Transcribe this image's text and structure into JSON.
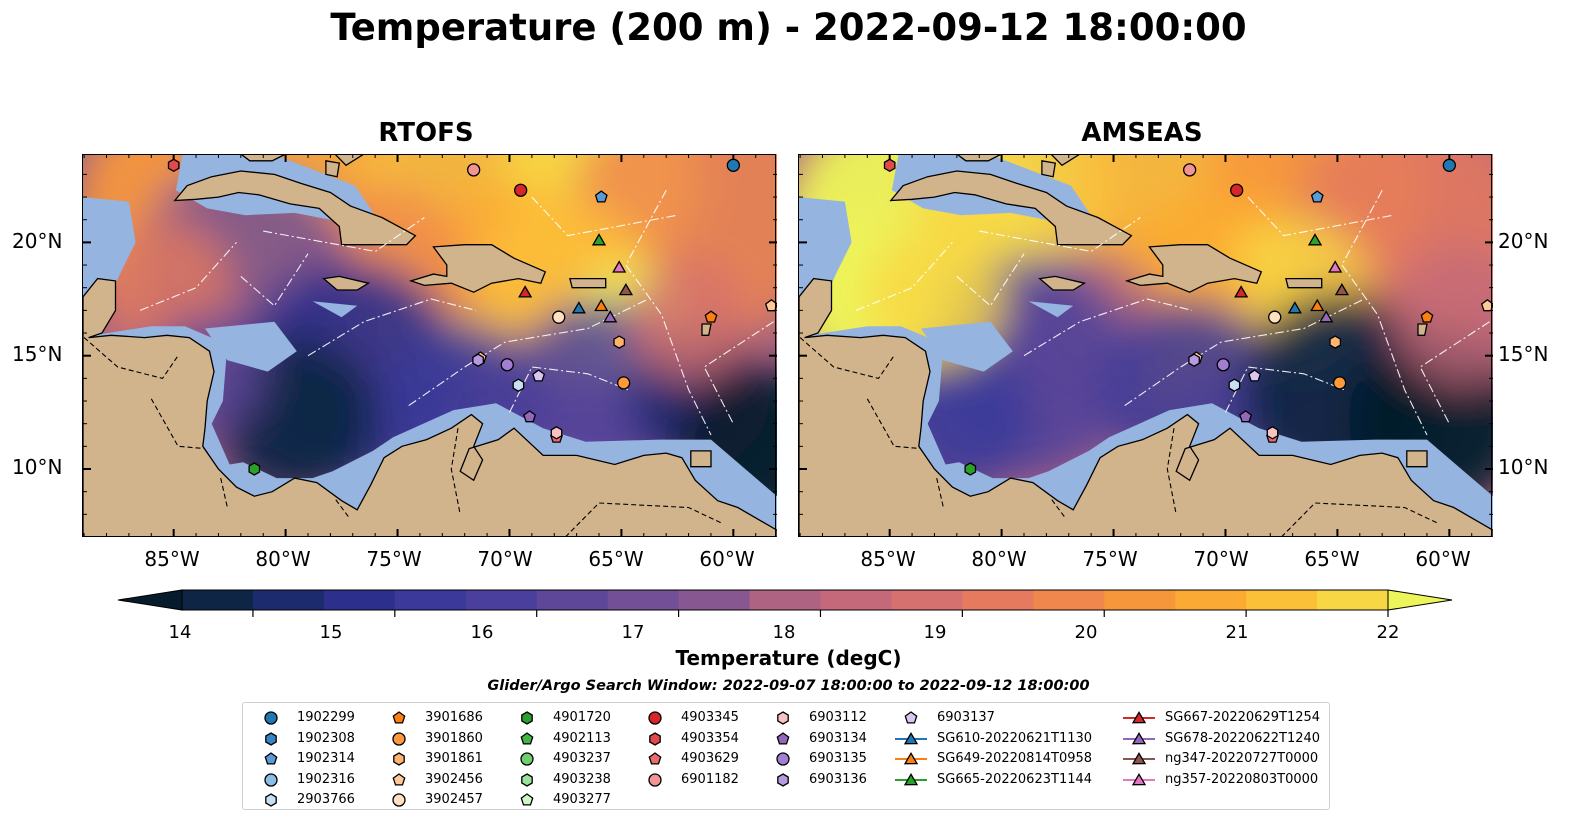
{
  "title": "Temperature (200 m) - 2022-09-12 18:00:00",
  "panels": [
    {
      "title": "RTOFS",
      "colorway": "warm"
    },
    {
      "title": "AMSEAS",
      "colorway": "bright"
    }
  ],
  "lat_labels": [
    "20°N",
    "15°N",
    "10°N"
  ],
  "lon_labels": [
    "85°W",
    "80°W",
    "75°W",
    "70°W",
    "65°W",
    "60°W"
  ],
  "colorbar": {
    "label": "Temperature (degC)",
    "min": 13.5,
    "max": 22,
    "step": 0.5,
    "tick_labels": [
      "14",
      "15",
      "16",
      "17",
      "18",
      "19",
      "20",
      "21",
      "22"
    ],
    "colors": [
      "#061b2b",
      "#0f2545",
      "#1c2a6e",
      "#2c308c",
      "#3b3999",
      "#4a3f9c",
      "#5e4699",
      "#724f97",
      "#875791",
      "#9b5d8a",
      "#ae6382",
      "#c3697a",
      "#d5716e",
      "#e57a5e",
      "#f0874c",
      "#f7973c",
      "#fbaa33",
      "#fcbf38",
      "#f8d744",
      "#eef55a"
    ]
  },
  "search_window": "Glider/Argo Search Window: 2022-09-07 18:00:00 to 2022-09-12 18:00:00",
  "legend": [
    [
      {
        "label": "1902299",
        "marker": "circle",
        "color": "#1f77b4"
      },
      {
        "label": "1902308",
        "marker": "hexagon",
        "color": "#3a84c4"
      },
      {
        "label": "1902314",
        "marker": "pentagon",
        "color": "#5a9bd6"
      },
      {
        "label": "1902316",
        "marker": "circle",
        "color": "#8bbfe6"
      },
      {
        "label": "2903766",
        "marker": "hexagon",
        "color": "#c6dff3"
      }
    ],
    [
      {
        "label": "3901686",
        "marker": "pentagon",
        "color": "#ff7f0e"
      },
      {
        "label": "3901860",
        "marker": "circle",
        "color": "#ff9a3c"
      },
      {
        "label": "3901861",
        "marker": "hexagon",
        "color": "#ffb36e"
      },
      {
        "label": "3902456",
        "marker": "pentagon",
        "color": "#ffc896"
      },
      {
        "label": "3902457",
        "marker": "circle",
        "color": "#ffe0c0"
      }
    ],
    [
      {
        "label": "4901720",
        "marker": "hexagon",
        "color": "#2ca02c"
      },
      {
        "label": "4902113",
        "marker": "pentagon",
        "color": "#45b545"
      },
      {
        "label": "4903237",
        "marker": "circle",
        "color": "#6fcf6f"
      },
      {
        "label": "4903238",
        "marker": "hexagon",
        "color": "#9be39b"
      },
      {
        "label": "4903277",
        "marker": "pentagon",
        "color": "#cff5c9"
      }
    ],
    [
      {
        "label": "4903345",
        "marker": "circle",
        "color": "#d62728"
      },
      {
        "label": "4903354",
        "marker": "hexagon",
        "color": "#e04a4a"
      },
      {
        "label": "4903629",
        "marker": "pentagon",
        "color": "#ea6b6b"
      },
      {
        "label": "6901182",
        "marker": "circle",
        "color": "#f29494"
      }
    ],
    [
      {
        "label": "6903112",
        "marker": "hexagon",
        "color": "#f9c3c3"
      },
      {
        "label": "6903134",
        "marker": "pentagon",
        "color": "#9467bd"
      },
      {
        "label": "6903135",
        "marker": "circle",
        "color": "#a27fd0"
      },
      {
        "label": "6903136",
        "marker": "hexagon",
        "color": "#b79be0"
      }
    ],
    [
      {
        "label": "6903137",
        "marker": "pentagon",
        "color": "#d9c6f3"
      },
      {
        "label": "SG610-20220621T1130",
        "marker": "triangle",
        "color": "#1f77b4",
        "line": true
      },
      {
        "label": "SG649-20220814T0958",
        "marker": "triangle",
        "color": "#ff7f0e",
        "line": true
      },
      {
        "label": "SG665-20220623T1144",
        "marker": "triangle",
        "color": "#2ca02c",
        "line": true
      }
    ],
    [
      {
        "label": "SG667-20220629T1254",
        "marker": "triangle",
        "color": "#d62728",
        "line": true
      },
      {
        "label": "SG678-20220622T1240",
        "marker": "triangle",
        "color": "#9467bd",
        "line": true
      },
      {
        "label": "ng347-20220727T0000",
        "marker": "triangle",
        "color": "#8c564b",
        "line": true
      },
      {
        "label": "ng357-20220803T0000",
        "marker": "triangle",
        "color": "#e377c2",
        "line": true
      }
    ]
  ],
  "map_markers": [
    {
      "id": "1902299",
      "lon": -60.0,
      "lat": 23.4,
      "marker": "circle",
      "color": "#1f77b4"
    },
    {
      "id": "1902314",
      "lon": -65.9,
      "lat": 22.0,
      "marker": "pentagon",
      "color": "#5a9bd6"
    },
    {
      "id": "2903766",
      "lon": -69.6,
      "lat": 13.7,
      "marker": "hexagon",
      "color": "#c6dff3"
    },
    {
      "id": "3901686",
      "lon": -61.0,
      "lat": 16.7,
      "marker": "pentagon",
      "color": "#ff7f0e"
    },
    {
      "id": "3901860",
      "lon": -64.9,
      "lat": 13.8,
      "marker": "circle",
      "color": "#ff9a3c"
    },
    {
      "id": "3901861",
      "lon": -65.1,
      "lat": 15.6,
      "marker": "hexagon",
      "color": "#ffb36e"
    },
    {
      "id": "3902456",
      "lon": -71.3,
      "lat": 14.9,
      "marker": "pentagon",
      "color": "#ffc896"
    },
    {
      "id": "3902457",
      "lon": -67.8,
      "lat": 16.7,
      "marker": "circle",
      "color": "#ffe0c0"
    },
    {
      "id": "4901720",
      "lon": -81.4,
      "lat": 10.0,
      "marker": "hexagon",
      "color": "#2ca02c"
    },
    {
      "id": "4903345",
      "lon": -69.5,
      "lat": 22.3,
      "marker": "circle",
      "color": "#d62728"
    },
    {
      "id": "4903354",
      "lon": -85.0,
      "lat": 23.4,
      "marker": "hexagon",
      "color": "#e04a4a"
    },
    {
      "id": "4903629",
      "lon": -67.9,
      "lat": 11.4,
      "marker": "pentagon",
      "color": "#ea6b6b"
    },
    {
      "id": "6901182",
      "lon": -71.6,
      "lat": 23.2,
      "marker": "circle",
      "color": "#f29494"
    },
    {
      "id": "6903112",
      "lon": -67.9,
      "lat": 11.6,
      "marker": "hexagon",
      "color": "#f9c3c3"
    },
    {
      "id": "6903134",
      "lon": -69.1,
      "lat": 12.3,
      "marker": "pentagon",
      "color": "#9467bd"
    },
    {
      "id": "6903135",
      "lon": -70.1,
      "lat": 14.6,
      "marker": "circle",
      "color": "#a27fd0"
    },
    {
      "id": "6903136",
      "lon": -71.4,
      "lat": 14.8,
      "marker": "hexagon",
      "color": "#b79be0"
    },
    {
      "id": "6903137",
      "lon": -68.7,
      "lat": 14.1,
      "marker": "pentagon",
      "color": "#d9c6f3"
    },
    {
      "id": "SG610",
      "lon": -66.9,
      "lat": 17.1,
      "marker": "triangle",
      "color": "#1f77b4"
    },
    {
      "id": "SG649",
      "lon": -65.9,
      "lat": 17.2,
      "marker": "triangle",
      "color": "#ff7f0e"
    },
    {
      "id": "SG665",
      "lon": -66.0,
      "lat": 20.1,
      "marker": "triangle",
      "color": "#2ca02c"
    },
    {
      "id": "SG667",
      "lon": -69.3,
      "lat": 17.8,
      "marker": "triangle",
      "color": "#d62728"
    },
    {
      "id": "SG678",
      "lon": -65.5,
      "lat": 16.7,
      "marker": "triangle",
      "color": "#9467bd"
    },
    {
      "id": "ng347",
      "lon": -64.8,
      "lat": 17.9,
      "marker": "triangle",
      "color": "#8c564b"
    },
    {
      "id": "ng357",
      "lon": -65.1,
      "lat": 18.9,
      "marker": "triangle",
      "color": "#e377c2"
    },
    {
      "id": "ex-2",
      "lon": -58.3,
      "lat": 17.2,
      "marker": "pentagon",
      "color": "#ffc896"
    }
  ]
}
